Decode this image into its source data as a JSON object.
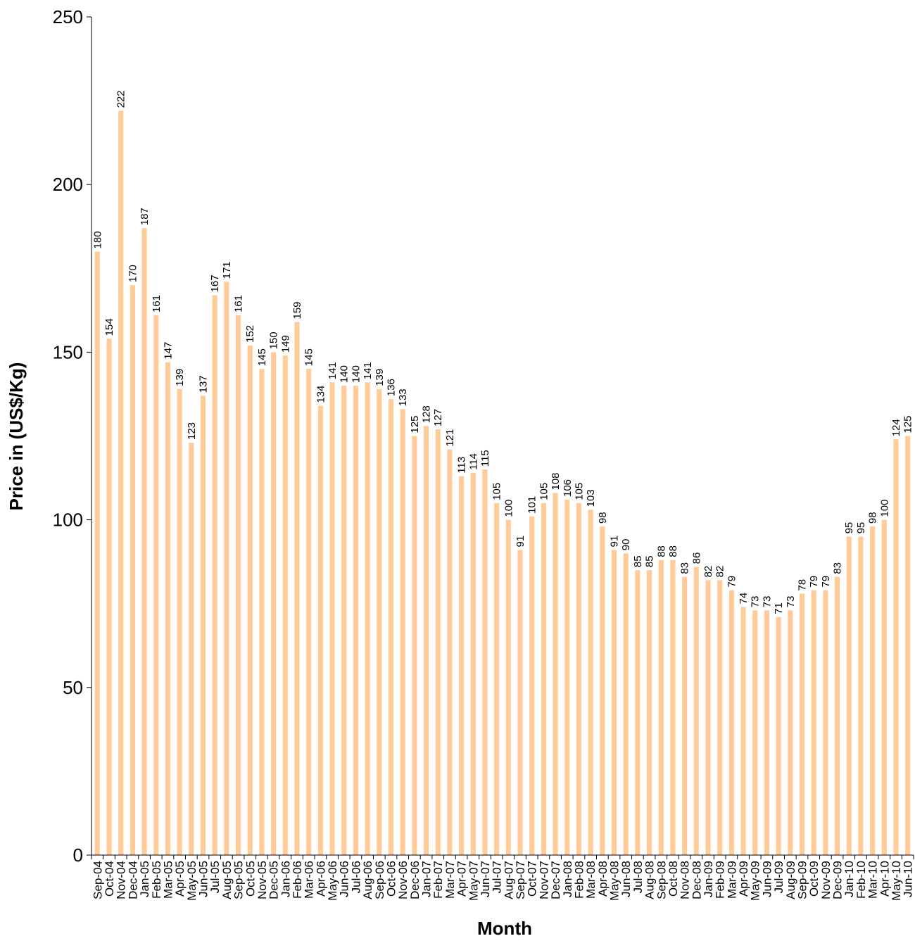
{
  "colors": {
    "bar": "#FFCC99",
    "axis": "#000000"
  },
  "chart_data": {
    "type": "bar",
    "title": "",
    "xlabel": "Month",
    "ylabel": "Price in (US$/Kg)",
    "ylim": [
      0,
      250
    ],
    "yticks": [
      0,
      50,
      100,
      150,
      200,
      250
    ],
    "grid": false,
    "legend": "none",
    "categories": [
      "Sep-04",
      "Oct-04",
      "Nov-04",
      "Dec-04",
      "Jan-05",
      "Feb-05",
      "Mar-05",
      "Apr-05",
      "May-05",
      "Jun-05",
      "Jul-05",
      "Aug-05",
      "Sep-05",
      "Oct-05",
      "Nov-05",
      "Dec-05",
      "Jan-06",
      "Feb-06",
      "Mar-06",
      "Apr-06",
      "May-06",
      "Jun-06",
      "Jul-06",
      "Aug-06",
      "Sep-06",
      "Oct-06",
      "Nov-06",
      "Dec-06",
      "Jan-07",
      "Feb-07",
      "Mar-07",
      "Apr-07",
      "May-07",
      "Jun-07",
      "Jul-07",
      "Aug-07",
      "Sep-07",
      "Oct-07",
      "Nov-07",
      "Dec-07",
      "Jan-08",
      "Feb-08",
      "Mar-08",
      "Apr-08",
      "May-08",
      "Jun-08",
      "Jul-08",
      "Aug-08",
      "Sep-08",
      "Oct-08",
      "Nov-08",
      "Dec-08",
      "Jan-09",
      "Feb-09",
      "Mar-09",
      "Apr-09",
      "May-09",
      "Jun-09",
      "Jul-09",
      "Aug-09",
      "Sep-09",
      "Oct-09",
      "Nov-09",
      "Dec-09",
      "Jan-10",
      "Feb-10",
      "Mar-10",
      "Apr-10",
      "May-10",
      "Jun-10"
    ],
    "values": [
      180,
      154,
      222,
      170,
      187,
      161,
      147,
      139,
      123,
      137,
      167,
      171,
      161,
      152,
      145,
      150,
      149,
      159,
      145,
      134,
      141,
      140,
      140,
      141,
      139,
      136,
      133,
      125,
      128,
      127,
      121,
      113,
      114,
      115,
      105,
      100,
      91,
      101,
      105,
      108,
      106,
      105,
      103,
      98,
      91,
      90,
      85,
      85,
      88,
      88,
      83,
      86,
      82,
      82,
      79,
      74,
      73,
      73,
      71,
      73,
      78,
      79,
      79,
      83,
      95,
      95,
      98,
      100,
      124,
      125
    ]
  }
}
